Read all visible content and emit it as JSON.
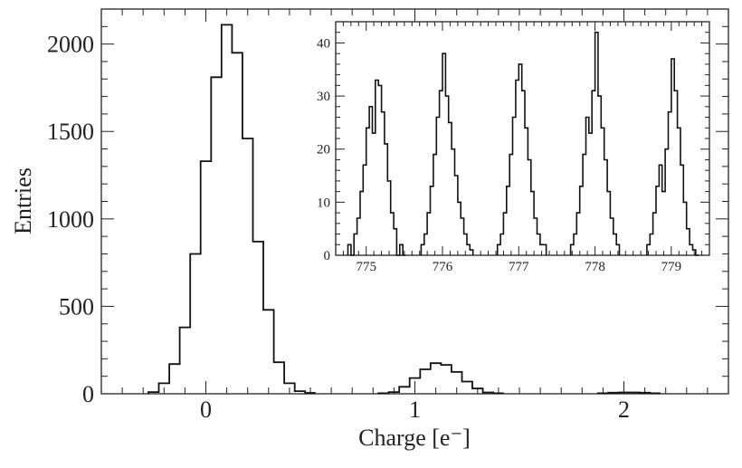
{
  "chart_data": [
    {
      "type": "histogram",
      "xlabel": "Charge [e⁻]",
      "ylabel": "Entries",
      "xlim": [
        -0.5,
        2.5
      ],
      "ylim": [
        0,
        2200
      ],
      "xticks": [
        0,
        1,
        2
      ],
      "xtick_labels": [
        "0",
        "1",
        "2"
      ],
      "yticks": [
        0,
        500,
        1000,
        1500,
        2000
      ],
      "ytick_labels": [
        "0",
        "500",
        "1000",
        "1500",
        "2000"
      ],
      "bin_width": 0.05,
      "grid": false,
      "bins": [
        {
          "x": -0.25,
          "y": 10
        },
        {
          "x": -0.2,
          "y": 60
        },
        {
          "x": -0.15,
          "y": 170
        },
        {
          "x": -0.1,
          "y": 380
        },
        {
          "x": -0.05,
          "y": 800
        },
        {
          "x": 0.0,
          "y": 1330
        },
        {
          "x": 0.05,
          "y": 1810
        },
        {
          "x": 0.1,
          "y": 2110
        },
        {
          "x": 0.15,
          "y": 1950
        },
        {
          "x": 0.2,
          "y": 1460
        },
        {
          "x": 0.25,
          "y": 870
        },
        {
          "x": 0.3,
          "y": 480
        },
        {
          "x": 0.35,
          "y": 180
        },
        {
          "x": 0.4,
          "y": 60
        },
        {
          "x": 0.45,
          "y": 15
        },
        {
          "x": 0.5,
          "y": 5
        },
        {
          "x": 0.85,
          "y": 3
        },
        {
          "x": 0.9,
          "y": 10
        },
        {
          "x": 0.95,
          "y": 40
        },
        {
          "x": 1.0,
          "y": 90
        },
        {
          "x": 1.05,
          "y": 140
        },
        {
          "x": 1.1,
          "y": 175
        },
        {
          "x": 1.15,
          "y": 165
        },
        {
          "x": 1.2,
          "y": 125
        },
        {
          "x": 1.25,
          "y": 70
        },
        {
          "x": 1.3,
          "y": 30
        },
        {
          "x": 1.35,
          "y": 8
        },
        {
          "x": 1.4,
          "y": 3
        },
        {
          "x": 1.9,
          "y": 3
        },
        {
          "x": 1.95,
          "y": 6
        },
        {
          "x": 2.0,
          "y": 8
        },
        {
          "x": 2.05,
          "y": 8
        },
        {
          "x": 2.1,
          "y": 6
        },
        {
          "x": 2.15,
          "y": 3
        }
      ]
    },
    {
      "type": "histogram",
      "inset": true,
      "xlim": [
        774.6,
        779.5
      ],
      "ylim": [
        0,
        44
      ],
      "xticks": [
        775,
        776,
        777,
        778,
        779
      ],
      "xtick_labels": [
        "775",
        "776",
        "777",
        "778",
        "779"
      ],
      "yticks": [
        0,
        10,
        20,
        30,
        40
      ],
      "ytick_labels": [
        "0",
        "10",
        "20",
        "30",
        "40"
      ],
      "bin_width": 0.04,
      "grid": false,
      "peaks": [
        {
          "start": 774.76,
          "counts": [
            2,
            0,
            4,
            7,
            12,
            17,
            24,
            28,
            23,
            33,
            32,
            27,
            21,
            14,
            8,
            5,
            0,
            2,
            0
          ]
        },
        {
          "start": 775.72,
          "counts": [
            2,
            4,
            8,
            13,
            19,
            26,
            31,
            38,
            30,
            25,
            20,
            15,
            10,
            7,
            4,
            2,
            1
          ]
        },
        {
          "start": 776.72,
          "counts": [
            2,
            4,
            8,
            13,
            19,
            26,
            33,
            36,
            31,
            24,
            18,
            12,
            7,
            4,
            2,
            2
          ]
        },
        {
          "start": 777.68,
          "counts": [
            2,
            4,
            8,
            13,
            19,
            26,
            23,
            31,
            42,
            30,
            24,
            18,
            12,
            7,
            4,
            2
          ]
        },
        {
          "start": 778.68,
          "counts": [
            2,
            4,
            8,
            13,
            17,
            12,
            20,
            27,
            37,
            31,
            24,
            17,
            10,
            5,
            2,
            1,
            0
          ]
        }
      ]
    }
  ]
}
